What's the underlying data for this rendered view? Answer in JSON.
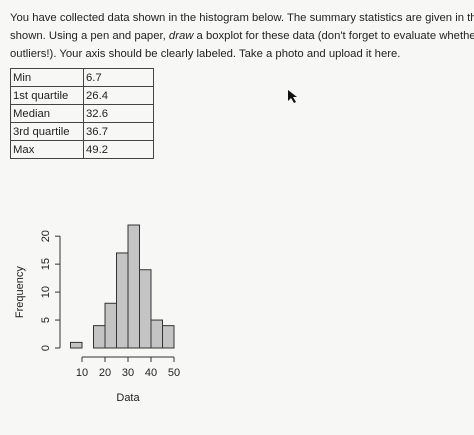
{
  "question": {
    "line1": "You have collected data shown in the histogram below. The summary statistics are given in the table",
    "line2_start": "shown. Using a pen and paper, ",
    "line2_emphasis": "draw",
    "line2_end": " a boxplot for these data (don't forget to evaluate whether there are",
    "line3": "outliers!). Your axis should be clearly labeled. Take a photo and upload it here."
  },
  "table": {
    "rows": [
      [
        "Min",
        "6.7"
      ],
      [
        "1st quartile",
        "26.4"
      ],
      [
        "Median",
        "32.6"
      ],
      [
        "3rd quartile",
        "36.7"
      ],
      [
        "Max",
        "49.2"
      ]
    ]
  },
  "chart_data": {
    "type": "histogram",
    "bins": [
      5,
      10,
      15,
      20,
      25,
      30,
      35,
      40,
      45,
      50
    ],
    "values": [
      1,
      0,
      4,
      8,
      17,
      22,
      14,
      5,
      4
    ],
    "color": "#c4c4c4",
    "xlabel": "Data",
    "ylabel": "Frequency",
    "xlim": [
      5,
      50
    ],
    "ylim": [
      0,
      22
    ],
    "xticks": [
      10,
      20,
      30,
      40,
      50
    ],
    "yticks": [
      0,
      5,
      10,
      15,
      20
    ]
  }
}
